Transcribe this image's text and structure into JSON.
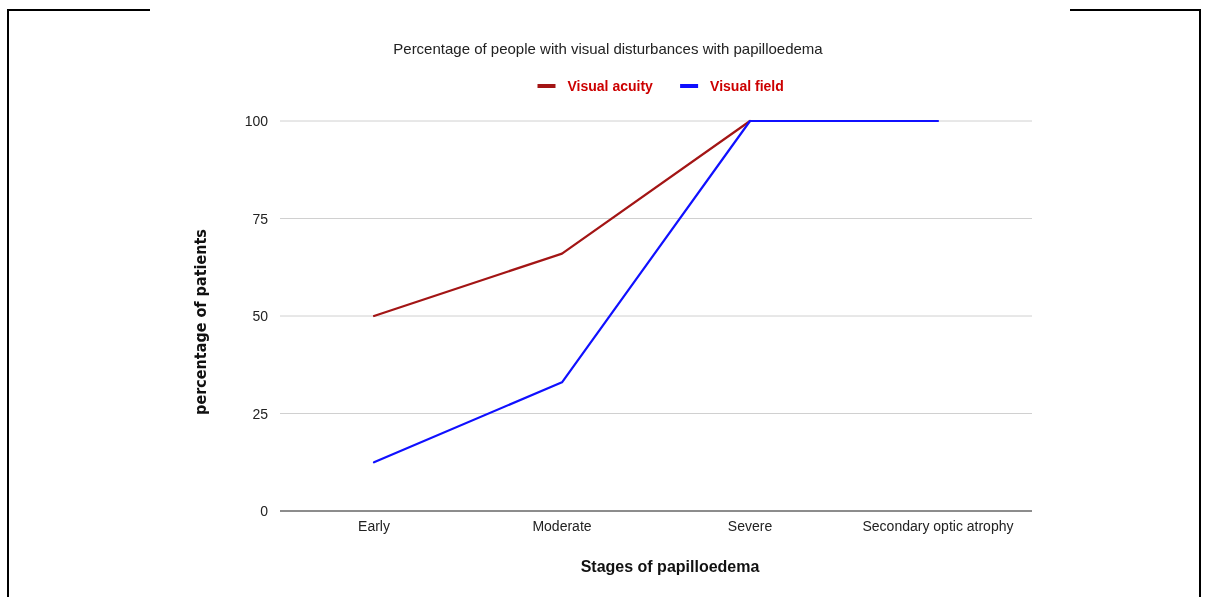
{
  "chart_data": {
    "type": "line",
    "title": "Percentage of people with visual disturbances with papilloedema",
    "xlabel": "Stages of papilloedema",
    "ylabel": "percentage of patients",
    "categories": [
      "Early",
      "Moderate",
      "Severe",
      "Secondary optic atrophy"
    ],
    "series": [
      {
        "name": "Visual acuity",
        "color": "#a31515",
        "values": [
          50,
          66,
          100,
          null
        ]
      },
      {
        "name": "Visual field",
        "color": "#1010ff",
        "values": [
          12.5,
          33,
          100,
          100
        ]
      }
    ],
    "ylim": [
      0,
      100
    ],
    "yticks": [
      0,
      25,
      50,
      75,
      100
    ],
    "grid": "y",
    "legend": "top",
    "marker": "none",
    "line_style": "solid"
  }
}
